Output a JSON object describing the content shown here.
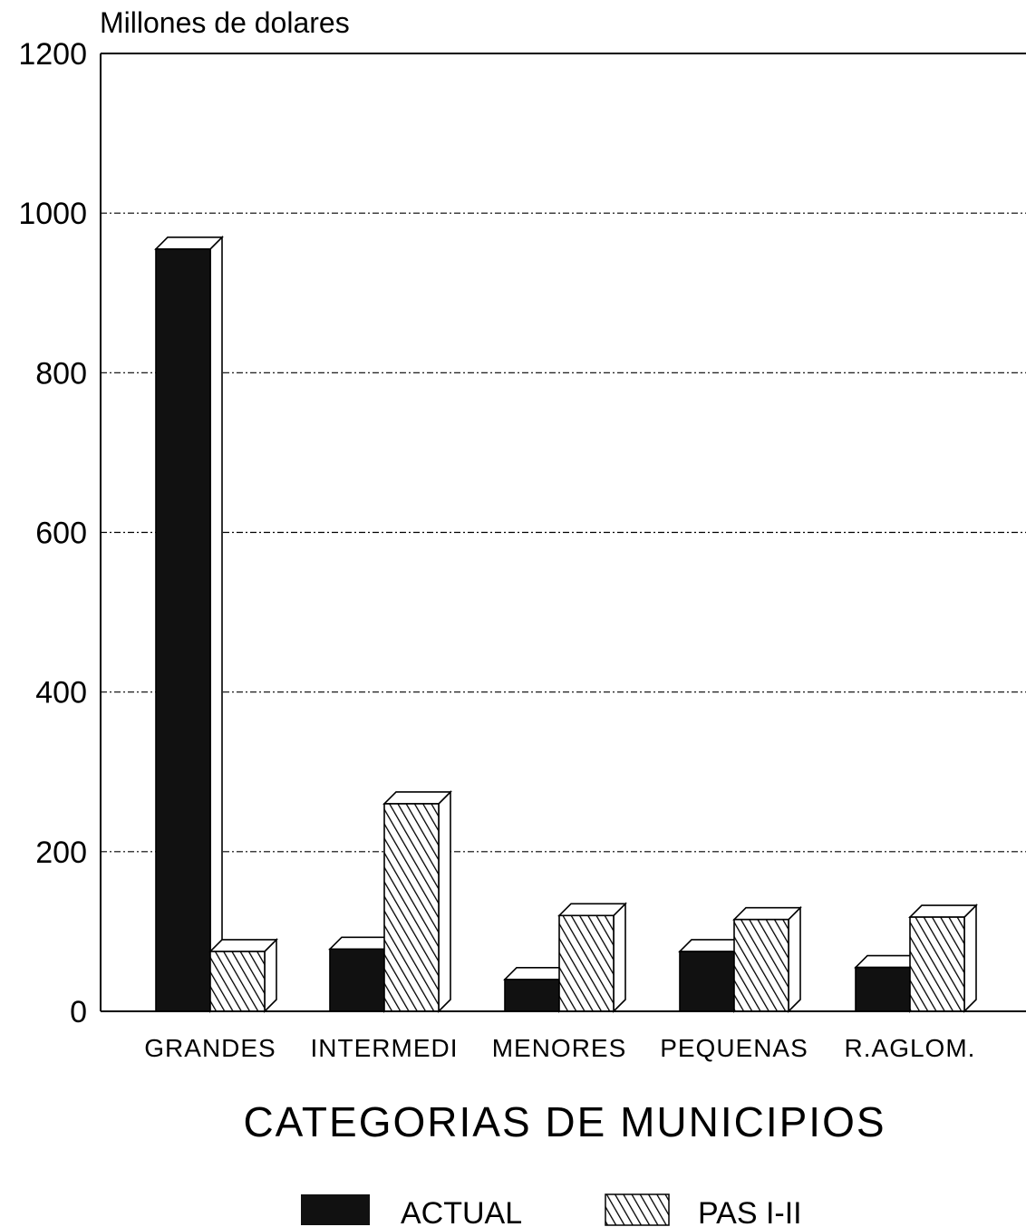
{
  "chart_data": {
    "type": "bar",
    "ylabel": "Millones de dolares",
    "xlabel": "CATEGORIAS DE MUNICIPIOS",
    "ylim": [
      0,
      1200
    ],
    "yticks": [
      0,
      200,
      400,
      600,
      800,
      1000,
      1200
    ],
    "grid": true,
    "legend_position": "bottom",
    "categories": [
      "GRANDES",
      "INTERMEDI",
      "MENORES",
      "PEQUENAS",
      "R.AGLOM."
    ],
    "series": [
      {
        "name": "ACTUAL",
        "values": [
          955,
          78,
          40,
          75,
          55
        ]
      },
      {
        "name": "PAS I-II",
        "values": [
          75,
          260,
          120,
          115,
          118
        ]
      }
    ]
  },
  "colors": {
    "actual": "#111111",
    "pas": "#000000",
    "background": "#ffffff"
  }
}
